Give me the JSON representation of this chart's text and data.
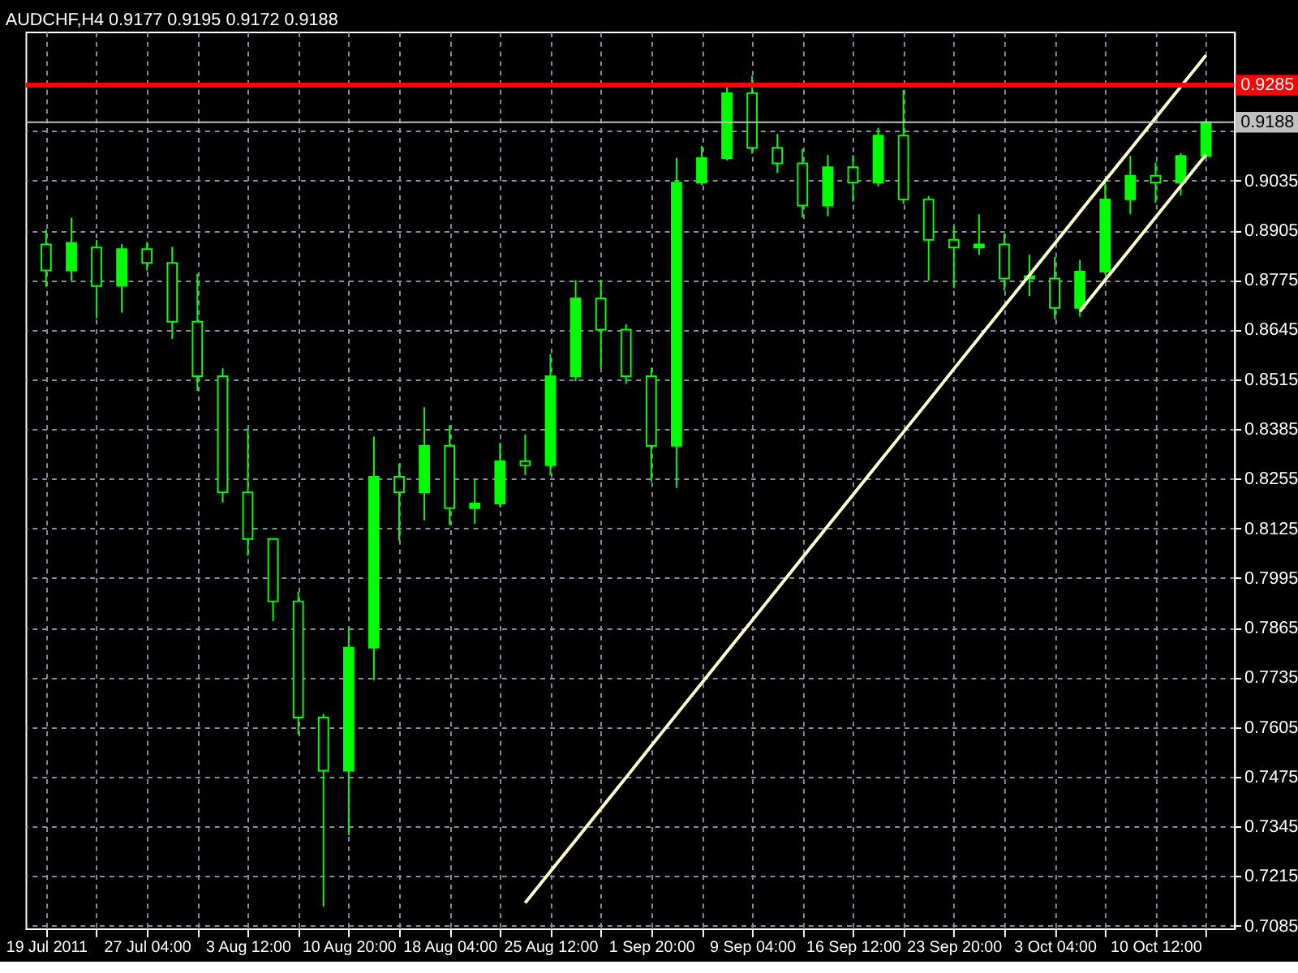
{
  "chart_data": {
    "type": "candlestick",
    "title": "AUDCHF,H4  0.9177 0.9195 0.9172 0.9188",
    "categories": [
      "19 Jul 2011",
      null,
      null,
      null,
      "27 Jul 04:00",
      null,
      null,
      null,
      "3 Aug 12:00",
      null,
      null,
      null,
      "10 Aug 20:00",
      null,
      null,
      null,
      "18 Aug 04:00",
      null,
      null,
      null,
      "25 Aug 12:00",
      null,
      null,
      null,
      "1 Sep 20:00",
      null,
      null,
      null,
      "9 Sep 04:00",
      null,
      null,
      null,
      "16 Sep 12:00",
      null,
      null,
      null,
      "23 Sep 20:00",
      null,
      null,
      null,
      "3 Oct 04:00",
      null,
      null,
      null,
      "10 Oct 12:00",
      null,
      null
    ],
    "ylim": [
      0.7078,
      0.9425
    ],
    "yticks": [
      0.7085,
      0.7215,
      0.7345,
      0.7475,
      0.7605,
      0.7735,
      0.7865,
      0.7995,
      0.8125,
      0.8255,
      0.8385,
      0.8515,
      0.8645,
      0.8775,
      0.8905,
      0.9035,
      {
        "value": 0.9165,
        "label": null
      }
    ],
    "grid": true,
    "colors": [
      "#00ff00",
      "#00ff00",
      "#00ff00",
      "#00ff00",
      "#00ff00",
      "#00ff00",
      "#00ff00",
      "#00ff00",
      "#00ff00",
      "#00ff00",
      "#00ff00",
      "#00ff00",
      "#00ff00",
      "#00ff00",
      "#00ff00",
      "#00ff00",
      "#00ff00",
      "#00ff00",
      "#00ff00",
      "#00ff00",
      "#00ff00",
      "#00ff00",
      "#00ff00",
      "#00ff00",
      "#00ff00",
      "#00ff00",
      "#00ff00",
      "#00ff00",
      "#00ff00",
      "#00ff00",
      "#00ff00",
      "#00ff00",
      "#00ff00",
      "#00ff00",
      "#00ff00",
      "#00ff00",
      "#00ff00",
      "#00ff00",
      "#00ff00",
      "#00ff00",
      "#00ff00",
      "#00ff00",
      "#00ff00",
      "#00ff00",
      "#00ff00",
      "#00ff00",
      "#00ff00"
    ],
    "ohlc": [
      [
        0.8868,
        0.8908,
        0.8757,
        0.88
      ],
      [
        0.88,
        0.8938,
        0.8773,
        0.8872
      ],
      [
        0.886,
        0.888,
        0.8675,
        0.8759
      ],
      [
        0.876,
        0.8869,
        0.869,
        0.8856
      ],
      [
        0.8856,
        0.8874,
        0.88,
        0.882
      ],
      [
        0.882,
        0.8862,
        0.8621,
        0.8666
      ],
      [
        0.8666,
        0.8791,
        0.8485,
        0.8523
      ],
      [
        0.8523,
        0.8544,
        0.8193,
        0.8219
      ],
      [
        0.8219,
        0.8387,
        0.8053,
        0.8097
      ],
      [
        0.8097,
        0.8099,
        0.7882,
        0.7934
      ],
      [
        0.7934,
        0.7959,
        0.7586,
        0.763
      ],
      [
        0.763,
        0.764,
        0.7135,
        0.7491
      ],
      [
        0.7491,
        0.7866,
        0.7322,
        0.7813
      ],
      [
        0.7813,
        0.8365,
        0.7728,
        0.826
      ],
      [
        0.826,
        0.8294,
        0.8093,
        0.8219
      ],
      [
        0.8219,
        0.8442,
        0.8146,
        0.8341
      ],
      [
        0.8341,
        0.8395,
        0.8134,
        0.8178
      ],
      [
        0.8178,
        0.8255,
        0.8137,
        0.819
      ],
      [
        0.819,
        0.8349,
        0.818,
        0.8301
      ],
      [
        0.8301,
        0.8371,
        0.8264,
        0.829
      ],
      [
        0.829,
        0.8581,
        0.8264,
        0.8523
      ],
      [
        0.8523,
        0.8775,
        0.851,
        0.8727
      ],
      [
        0.8727,
        0.8776,
        0.8544,
        0.8645
      ],
      [
        0.8645,
        0.8659,
        0.8503,
        0.8523
      ],
      [
        0.8523,
        0.8544,
        0.8247,
        0.8341
      ],
      [
        0.8341,
        0.9095,
        0.8231,
        0.903
      ],
      [
        0.903,
        0.9126,
        0.9023,
        0.9094
      ],
      [
        0.9094,
        0.9281,
        0.9088,
        0.9264
      ],
      [
        0.9264,
        0.9309,
        0.9106,
        0.9121
      ],
      [
        0.9121,
        0.9157,
        0.9055,
        0.908
      ],
      [
        0.908,
        0.9118,
        0.8939,
        0.897
      ],
      [
        0.897,
        0.9102,
        0.8942,
        0.907
      ],
      [
        0.907,
        0.9102,
        0.898,
        0.903
      ],
      [
        0.903,
        0.9173,
        0.902,
        0.9153
      ],
      [
        0.9153,
        0.9272,
        0.8974,
        0.8986
      ],
      [
        0.8986,
        0.8995,
        0.8774,
        0.888
      ],
      [
        0.888,
        0.8916,
        0.8754,
        0.886
      ],
      [
        0.886,
        0.8947,
        0.8841,
        0.8868
      ],
      [
        0.8868,
        0.8896,
        0.8747,
        0.8779
      ],
      [
        0.8779,
        0.8841,
        0.8733,
        0.8785
      ],
      [
        0.8779,
        0.8835,
        0.8672,
        0.8702
      ],
      [
        0.8702,
        0.8828,
        0.8679,
        0.8797
      ],
      [
        0.8797,
        0.903,
        0.879,
        0.8986
      ],
      [
        0.8986,
        0.91,
        0.8947,
        0.9048
      ],
      [
        0.9048,
        0.9083,
        0.8977,
        0.903
      ],
      [
        0.903,
        0.9107,
        0.8996,
        0.91
      ],
      [
        0.91,
        0.9195,
        0.9095,
        0.9188
      ]
    ],
    "series": [
      {
        "type": "line",
        "color": "#ffffcc",
        "values": [
          null,
          null,
          null,
          null,
          null,
          null,
          null,
          null,
          null,
          null,
          null,
          null,
          null,
          null,
          null,
          null,
          null,
          null,
          null,
          0.7145,
          0.7227,
          0.7309,
          0.7391,
          0.7473,
          0.7556,
          0.7638,
          0.772,
          0.7802,
          0.7884,
          0.7966,
          0.8049,
          0.8131,
          0.8213,
          0.8295,
          0.8377,
          0.8459,
          0.8542,
          0.8624,
          0.8706,
          0.8788,
          0.887,
          0.8953,
          0.9035,
          0.9117,
          0.9199,
          0.9281,
          0.9363
        ]
      },
      {
        "type": "line",
        "color": "#ffffcc",
        "values": [
          null,
          null,
          null,
          null,
          null,
          null,
          null,
          null,
          null,
          null,
          null,
          null,
          null,
          null,
          null,
          null,
          null,
          null,
          null,
          null,
          null,
          null,
          null,
          null,
          null,
          null,
          null,
          null,
          null,
          null,
          null,
          null,
          null,
          null,
          null,
          null,
          null,
          null,
          null,
          null,
          null,
          0.8693,
          0.8775,
          0.8857,
          0.8939,
          0.9021,
          0.9103
        ]
      }
    ],
    "ref_lines": [
      {
        "axis": "y",
        "value": 0.9285,
        "label": "0.9285",
        "color": "#ff0000"
      },
      {
        "axis": "y",
        "value": 0.9188,
        "label": "0.9188",
        "color": "#c0c0c0"
      }
    ]
  }
}
